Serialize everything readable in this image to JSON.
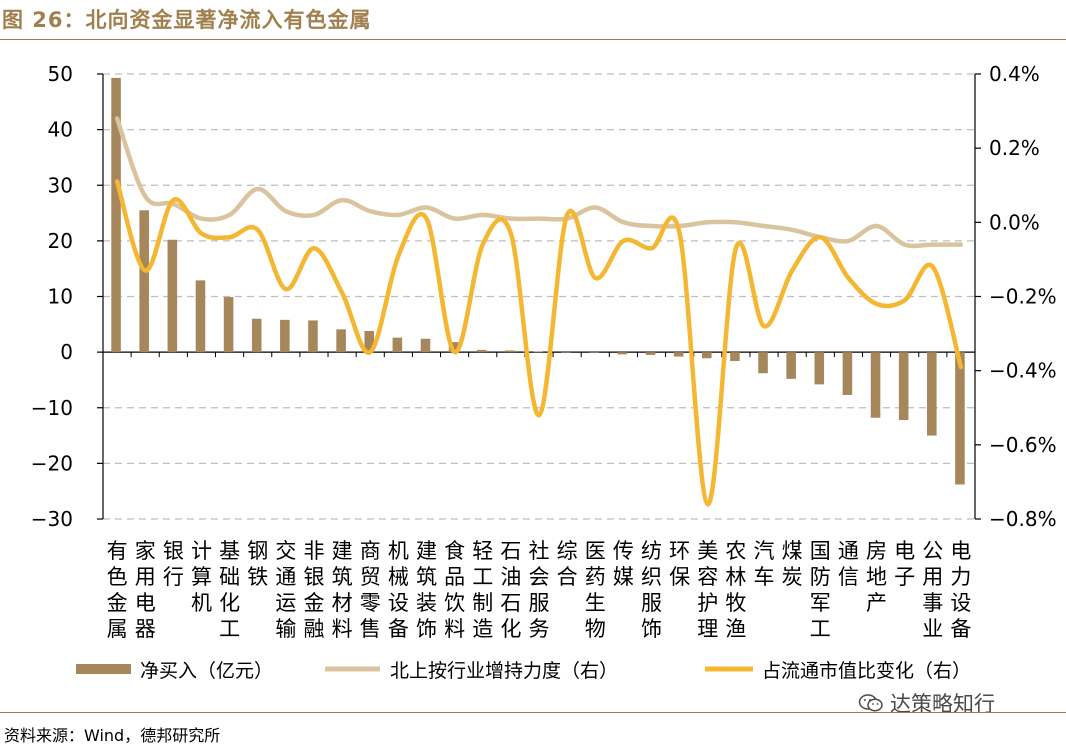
{
  "title": "图 26：北向资金显著净流入有色金属",
  "source": "资料来源：Wind，德邦研究所",
  "watermark": "达策略知行",
  "colors": {
    "accent": "#a0804f",
    "bar": "#a6875c",
    "line_hold": "#d9c49e",
    "line_share": "#f5b731",
    "grid": "#bfbfbf"
  },
  "chart_data": {
    "type": "bar",
    "categories": [
      "有色金属",
      "家用电器",
      "银行",
      "计算机",
      "基础化工",
      "钢铁",
      "交通运输",
      "非银金融",
      "建筑材料",
      "商贸零售",
      "机械设备",
      "建筑装饰",
      "食品饮料",
      "轻工制造",
      "石油石化",
      "社会服务",
      "综合",
      "医药生物",
      "传媒",
      "纺织服饰",
      "环保",
      "美容护理",
      "农林牧渔",
      "汽车",
      "煤炭",
      "国防军工",
      "通信",
      "房地产",
      "电子",
      "公用事业",
      "电力设备"
    ],
    "tick_label_lines": [
      [
        "有",
        "色",
        "金",
        "属"
      ],
      [
        "家",
        "用",
        "电",
        "器"
      ],
      [
        "银",
        "行"
      ],
      [
        "计",
        "算",
        "机"
      ],
      [
        "基",
        "础",
        "化",
        "工"
      ],
      [
        "钢",
        "铁"
      ],
      [
        "交",
        "通",
        "运",
        "输"
      ],
      [
        "非",
        "银",
        "金",
        "融"
      ],
      [
        "建",
        "筑",
        "材",
        "料"
      ],
      [
        "商",
        "贸",
        "零",
        "售"
      ],
      [
        "机",
        "械",
        "设",
        "备"
      ],
      [
        "建",
        "筑",
        "装",
        "饰"
      ],
      [
        "食",
        "品",
        "饮",
        "料"
      ],
      [
        "轻",
        "工",
        "制",
        "造"
      ],
      [
        "石",
        "油",
        "石",
        "化"
      ],
      [
        "社",
        "会",
        "服",
        "务"
      ],
      [
        "综",
        "合"
      ],
      [
        "医",
        "药",
        "生",
        "物"
      ],
      [
        "传",
        "媒"
      ],
      [
        "纺",
        "织",
        "服",
        "饰"
      ],
      [
        "环",
        "保"
      ],
      [
        "美",
        "容",
        "护",
        "理"
      ],
      [
        "农",
        "林",
        "牧",
        "渔"
      ],
      [
        "汽",
        "车"
      ],
      [
        "煤",
        "炭"
      ],
      [
        "国",
        "防",
        "军",
        "工"
      ],
      [
        "通",
        "信"
      ],
      [
        "房",
        "地",
        "产"
      ],
      [
        "电",
        "子"
      ],
      [
        "公",
        "用",
        "事",
        "业"
      ],
      [
        "电",
        "力",
        "设",
        "备"
      ]
    ],
    "series": [
      {
        "name": "净买入（亿元）",
        "type": "bar",
        "axis": "left",
        "values": [
          49.3,
          25.5,
          20.2,
          12.9,
          9.9,
          6.0,
          5.8,
          5.7,
          4.1,
          3.8,
          2.6,
          2.4,
          1.8,
          0.4,
          0.3,
          0.1,
          0.0,
          -0.1,
          -0.4,
          -0.5,
          -0.8,
          -1.1,
          -1.6,
          -3.8,
          -4.8,
          -5.8,
          -7.7,
          -11.8,
          -12.2,
          -15.0,
          -23.8
        ]
      },
      {
        "name": "北上按行业增持力度（右）",
        "type": "line",
        "axis": "right",
        "values": [
          0.28,
          0.07,
          0.05,
          0.01,
          0.02,
          0.09,
          0.03,
          0.02,
          0.06,
          0.03,
          0.02,
          0.04,
          0.01,
          0.02,
          0.01,
          0.01,
          0.01,
          0.04,
          0.0,
          -0.01,
          -0.01,
          0.0,
          0.0,
          -0.01,
          -0.02,
          -0.04,
          -0.05,
          -0.01,
          -0.06,
          -0.06,
          -0.06
        ]
      },
      {
        "name": "占流通市值比变化（右）",
        "type": "line",
        "axis": "right",
        "values": [
          0.11,
          -0.13,
          0.06,
          -0.03,
          -0.04,
          -0.02,
          -0.18,
          -0.07,
          -0.19,
          -0.35,
          -0.09,
          0.01,
          -0.35,
          -0.06,
          -0.03,
          -0.52,
          0.02,
          -0.15,
          -0.05,
          -0.07,
          -0.03,
          -0.76,
          -0.07,
          -0.28,
          -0.13,
          -0.04,
          -0.15,
          -0.22,
          -0.21,
          -0.12,
          -0.39
        ]
      }
    ],
    "y_left": {
      "min": -30,
      "max": 50,
      "ticks": [
        "−30",
        "−20",
        "−10",
        "0",
        "10",
        "20",
        "30",
        "40",
        "50"
      ]
    },
    "y_right": {
      "min": -0.8,
      "max": 0.4,
      "ticks": [
        "−0.8%",
        "−0.6%",
        "−0.4%",
        "−0.2%",
        "0.0%",
        "0.2%",
        "0.4%"
      ]
    },
    "grid": true,
    "legend_position": "bottom"
  }
}
